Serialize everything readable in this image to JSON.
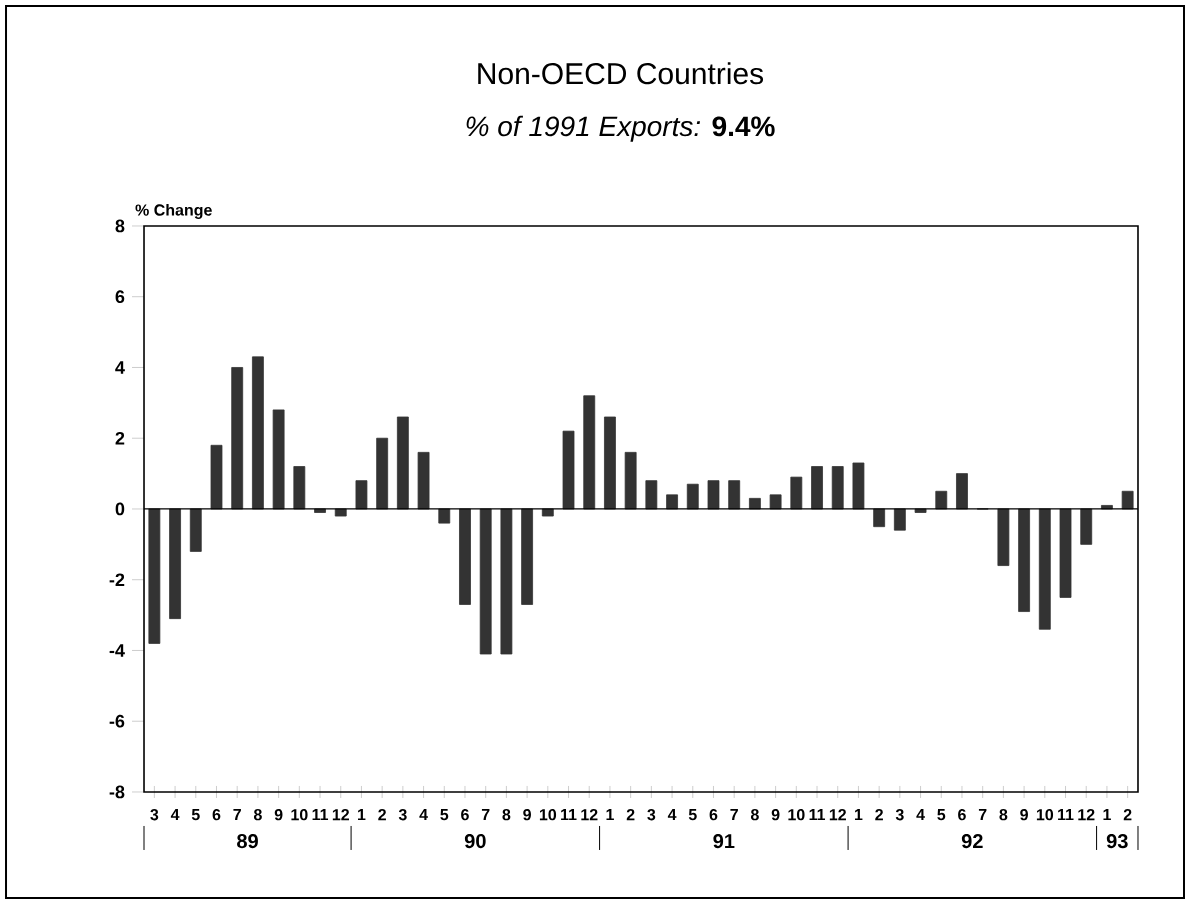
{
  "chart_data": {
    "type": "bar",
    "title": "Non-OECD Countries",
    "subtitle": "*% of 1991 Exports:* **9.4%**",
    "ylabel": "% Change",
    "categories": [
      "3",
      "4",
      "5",
      "6",
      "7",
      "8",
      "9",
      "10",
      "11",
      "12",
      "1",
      "2",
      "3",
      "4",
      "5",
      "6",
      "7",
      "8",
      "9",
      "10",
      "11",
      "12",
      "1",
      "2",
      "3",
      "4",
      "5",
      "6",
      "7",
      "8",
      "9",
      "10",
      "11",
      "12",
      "1",
      "2",
      "3",
      "4",
      "5",
      "6",
      "7",
      "8",
      "9",
      "10",
      "11",
      "12",
      "1",
      "2"
    ],
    "values": [
      -3.8,
      -3.1,
      -1.2,
      1.8,
      4.0,
      4.3,
      2.8,
      1.2,
      -0.1,
      -0.2,
      0.8,
      2.0,
      2.6,
      1.6,
      -0.4,
      -2.7,
      -4.1,
      -4.1,
      -2.7,
      -0.2,
      2.2,
      3.2,
      2.6,
      1.6,
      0.8,
      0.4,
      0.7,
      0.8,
      0.8,
      0.3,
      0.4,
      0.9,
      1.2,
      1.2,
      1.3,
      -0.5,
      -0.6,
      -0.1,
      0.5,
      1.0,
      0.0,
      -1.6,
      -2.9,
      -3.4,
      -2.5,
      -1.0,
      0.1,
      0.5
    ],
    "color": "#333333",
    "ylim": [
      -8,
      8
    ],
    "yticks": [
      -8,
      -6,
      -4,
      -2,
      0,
      2,
      4,
      6,
      8
    ],
    "annotations": [
      "89",
      "90",
      "91",
      "92",
      "93"
    ]
  }
}
